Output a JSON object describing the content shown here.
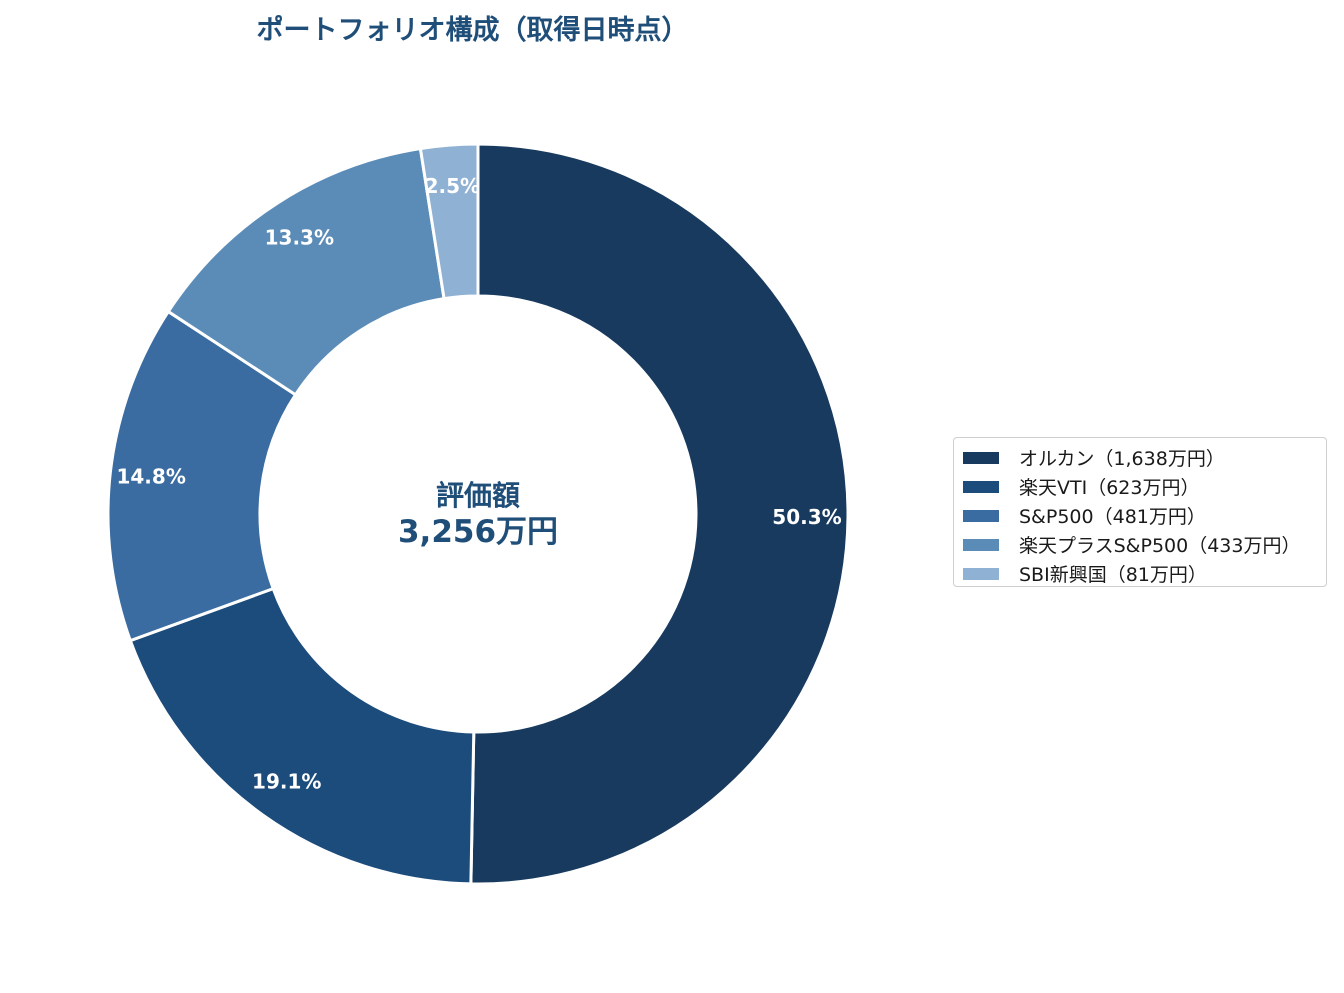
{
  "chart_data": {
    "type": "pie",
    "subtype": "donut",
    "title": "ポートフォリオ構成（取得日時点）",
    "center_label": {
      "line1": "評価額",
      "line2": "3,256万円"
    },
    "slices": [
      {
        "legend": "オルカン（1,638万円）",
        "value": 1638,
        "percent_label": "50.3%",
        "color": "#173a5e"
      },
      {
        "legend": "楽天VTI（623万円）",
        "value": 623,
        "percent_label": "19.1%",
        "color": "#1c4c7c"
      },
      {
        "legend": "S&P500（481万円）",
        "value": 481,
        "percent_label": "14.8%",
        "color": "#3b6ca1"
      },
      {
        "legend": "楽天プラスS&P500（433万円）",
        "value": 433,
        "percent_label": "13.3%",
        "color": "#5b8cb8"
      },
      {
        "legend": "SBI新興国（81万円）",
        "value": 81,
        "percent_label": "2.5%",
        "color": "#8fb1d4"
      }
    ],
    "start_angle": "12 o'clock",
    "direction": "clockwise",
    "legend_position": "right"
  }
}
